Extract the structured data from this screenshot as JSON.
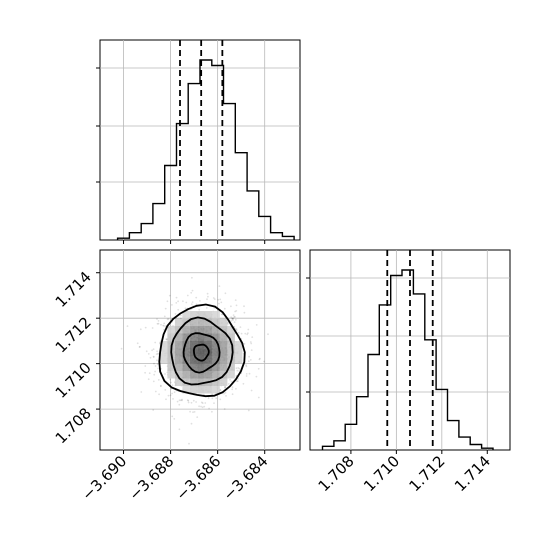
{
  "chart_data": [
    {
      "type": "histogram",
      "panel": "top-left",
      "parameter_index": 0,
      "x_range": [
        -3.691,
        -3.6825
      ],
      "bins": [
        -3.69,
        -3.6895,
        -3.689,
        -3.6885,
        -3.688,
        -3.6875,
        -3.687,
        -3.6865,
        -3.686,
        -3.6855,
        -3.685,
        -3.6845,
        -3.684,
        -3.6835,
        -3.683
      ],
      "counts": [
        0.01,
        0.04,
        0.09,
        0.2,
        0.41,
        0.64,
        0.86,
        0.99,
        0.96,
        0.75,
        0.48,
        0.27,
        0.13,
        0.04,
        0.02
      ],
      "quantile_lines": [
        -3.6876,
        -3.6867,
        -3.6858
      ],
      "y_ticks_labeled": false,
      "grid": true
    },
    {
      "type": "scatter-density-contour",
      "panel": "bottom-left",
      "x_range": [
        -3.691,
        -3.6825
      ],
      "y_range": [
        1.7062,
        1.715
      ],
      "center": {
        "x": -3.6867,
        "y": 1.7105
      },
      "spread": {
        "x": 0.0009,
        "y": 0.001
      },
      "contour_levels": 4,
      "x_ticks": [
        "−3.690",
        "−3.688",
        "−3.686",
        "−3.684"
      ],
      "x_tick_values": [
        -3.69,
        -3.688,
        -3.686,
        -3.684
      ],
      "y_ticks": [
        "1.708",
        "1.710",
        "1.712",
        "1.714"
      ],
      "y_tick_values": [
        1.708,
        1.71,
        1.712,
        1.714
      ],
      "grid": true
    },
    {
      "type": "histogram",
      "panel": "bottom-right",
      "parameter_index": 1,
      "x_range": [
        1.7062,
        1.715
      ],
      "bins": [
        1.707,
        1.7075,
        1.708,
        1.7085,
        1.709,
        1.7095,
        1.71,
        1.7105,
        1.711,
        1.7115,
        1.712,
        1.7125,
        1.713,
        1.7135,
        1.714
      ],
      "counts": [
        0.02,
        0.05,
        0.14,
        0.29,
        0.52,
        0.79,
        0.95,
        0.98,
        0.85,
        0.6,
        0.33,
        0.16,
        0.07,
        0.03,
        0.01
      ],
      "quantile_lines": [
        1.7096,
        1.7106,
        1.7116
      ],
      "x_ticks": [
        "1.708",
        "1.710",
        "1.712",
        "1.714"
      ],
      "x_tick_values": [
        1.708,
        1.71,
        1.712,
        1.714
      ],
      "y_ticks_labeled": false,
      "grid": true
    }
  ]
}
